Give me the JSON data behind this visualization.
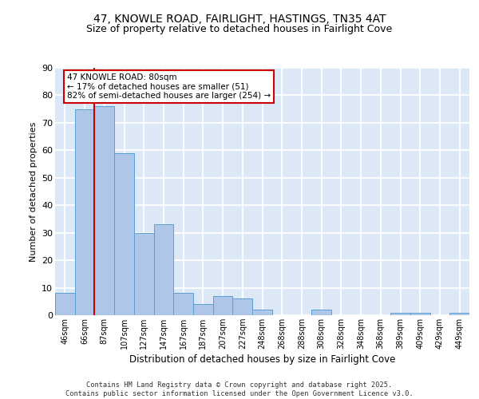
{
  "title1": "47, KNOWLE ROAD, FAIRLIGHT, HASTINGS, TN35 4AT",
  "title2": "Size of property relative to detached houses in Fairlight Cove",
  "xlabel": "Distribution of detached houses by size in Fairlight Cove",
  "ylabel": "Number of detached properties",
  "bar_labels": [
    "46sqm",
    "66sqm",
    "87sqm",
    "107sqm",
    "127sqm",
    "147sqm",
    "167sqm",
    "187sqm",
    "207sqm",
    "227sqm",
    "248sqm",
    "268sqm",
    "288sqm",
    "308sqm",
    "328sqm",
    "348sqm",
    "368sqm",
    "389sqm",
    "409sqm",
    "429sqm",
    "449sqm"
  ],
  "bar_values": [
    8,
    75,
    76,
    59,
    30,
    33,
    8,
    4,
    7,
    6,
    2,
    0,
    0,
    2,
    0,
    0,
    0,
    1,
    1,
    0,
    1
  ],
  "bar_color": "#aec6e8",
  "bar_edge_color": "#5a9fd4",
  "vline_x": 1.5,
  "vline_color": "#cc0000",
  "annotation_text": "47 KNOWLE ROAD: 80sqm\n← 17% of detached houses are smaller (51)\n82% of semi-detached houses are larger (254) →",
  "annotation_box_color": "#ffffff",
  "annotation_box_edge": "#cc0000",
  "ylim": [
    0,
    90
  ],
  "yticks": [
    0,
    10,
    20,
    30,
    40,
    50,
    60,
    70,
    80,
    90
  ],
  "background_color": "#dce8f5",
  "grid_color": "#ffffff",
  "footer": "Contains HM Land Registry data © Crown copyright and database right 2025.\nContains public sector information licensed under the Open Government Licence v3.0.",
  "title_fontsize": 10,
  "subtitle_fontsize": 9
}
